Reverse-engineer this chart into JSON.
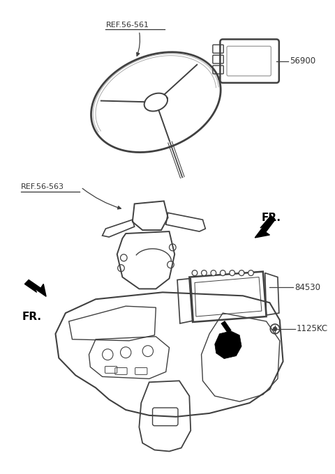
{
  "background_color": "#ffffff",
  "line_color": "#404040",
  "text_color": "#333333",
  "ref1_text": "REF.56-561",
  "ref2_text": "REF.56-563",
  "part_56900": "56900",
  "part_84530": "84530",
  "part_1125KC": "1125KC",
  "fr_text": "FR."
}
